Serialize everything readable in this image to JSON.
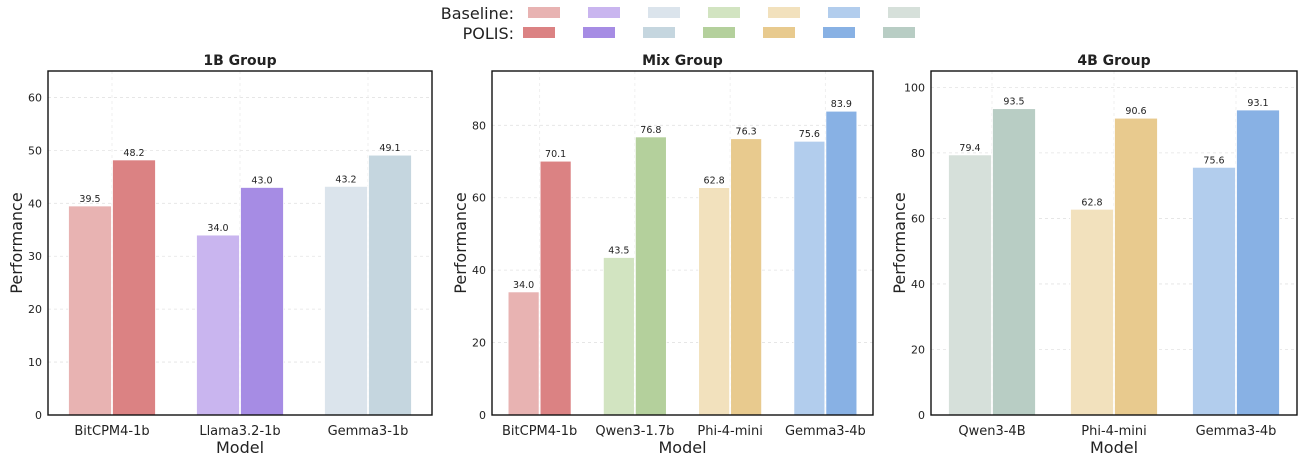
{
  "legend": {
    "baseline_label": "Baseline:",
    "polis_label": "POLIS:",
    "baseline_colors": [
      "#e8b3b2",
      "#c9b5ef",
      "#dbe4ec",
      "#d2e4c1",
      "#f2e1bd",
      "#b2cded",
      "#d6e0da"
    ],
    "polis_colors": [
      "#db8283",
      "#a68ce4",
      "#c5d6df",
      "#b4d09c",
      "#e8ca8e",
      "#88b1e4",
      "#b8cdc4"
    ]
  },
  "chart_data": [
    {
      "type": "bar",
      "title": "1B Group",
      "xlabel": "Model",
      "ylabel": "Performance",
      "ylim": [
        0,
        65
      ],
      "yticks": [
        0,
        10,
        20,
        30,
        40,
        50,
        60
      ],
      "grid": true,
      "categories": [
        "BitCPM4-1b",
        "Llama3.2-1b",
        "Gemma3-1b"
      ],
      "series": [
        {
          "name": "Baseline",
          "values": [
            39.5,
            34.0,
            43.2
          ],
          "labels": [
            "39.5",
            "34.0",
            "43.2"
          ],
          "colors": [
            "#e8b3b2",
            "#c9b5ef",
            "#dbe4ec"
          ]
        },
        {
          "name": "POLIS",
          "values": [
            48.2,
            43.0,
            49.1
          ],
          "labels": [
            "48.2",
            "43.0",
            "49.1"
          ],
          "colors": [
            "#db8283",
            "#a68ce4",
            "#c5d6df"
          ]
        }
      ]
    },
    {
      "type": "bar",
      "title": "Mix Group",
      "xlabel": "Model",
      "ylabel": "Performance",
      "ylim": [
        0,
        95
      ],
      "yticks": [
        0,
        20,
        40,
        60,
        80
      ],
      "grid": true,
      "categories": [
        "BitCPM4-1b",
        "Qwen3-1.7b",
        "Phi-4-mini",
        "Gemma3-4b"
      ],
      "series": [
        {
          "name": "Baseline",
          "values": [
            34.0,
            43.5,
            62.8,
            75.6
          ],
          "labels": [
            "34.0",
            "43.5",
            "62.8",
            "75.6"
          ],
          "colors": [
            "#e8b3b2",
            "#d2e4c1",
            "#f2e1bd",
            "#b2cded"
          ]
        },
        {
          "name": "POLIS",
          "values": [
            70.1,
            76.8,
            76.3,
            83.9
          ],
          "labels": [
            "70.1",
            "76.8",
            "76.3",
            "83.9"
          ],
          "colors": [
            "#db8283",
            "#b4d09c",
            "#e8ca8e",
            "#88b1e4"
          ]
        }
      ]
    },
    {
      "type": "bar",
      "title": "4B Group",
      "xlabel": "Model",
      "ylabel": "Performance",
      "ylim": [
        0,
        105
      ],
      "yticks": [
        0,
        20,
        40,
        60,
        80,
        100
      ],
      "grid": true,
      "categories": [
        "Qwen3-4B",
        "Phi-4-mini",
        "Gemma3-4b"
      ],
      "series": [
        {
          "name": "Baseline",
          "values": [
            79.4,
            62.8,
            75.6
          ],
          "labels": [
            "79.4",
            "62.8",
            "75.6"
          ],
          "colors": [
            "#d6e0da",
            "#f2e1bd",
            "#b2cded"
          ]
        },
        {
          "name": "POLIS",
          "values": [
            93.5,
            90.6,
            93.1
          ],
          "labels": [
            "93.5",
            "90.6",
            "93.1"
          ],
          "colors": [
            "#b8cdc4",
            "#e8ca8e",
            "#88b1e4"
          ]
        }
      ]
    }
  ]
}
